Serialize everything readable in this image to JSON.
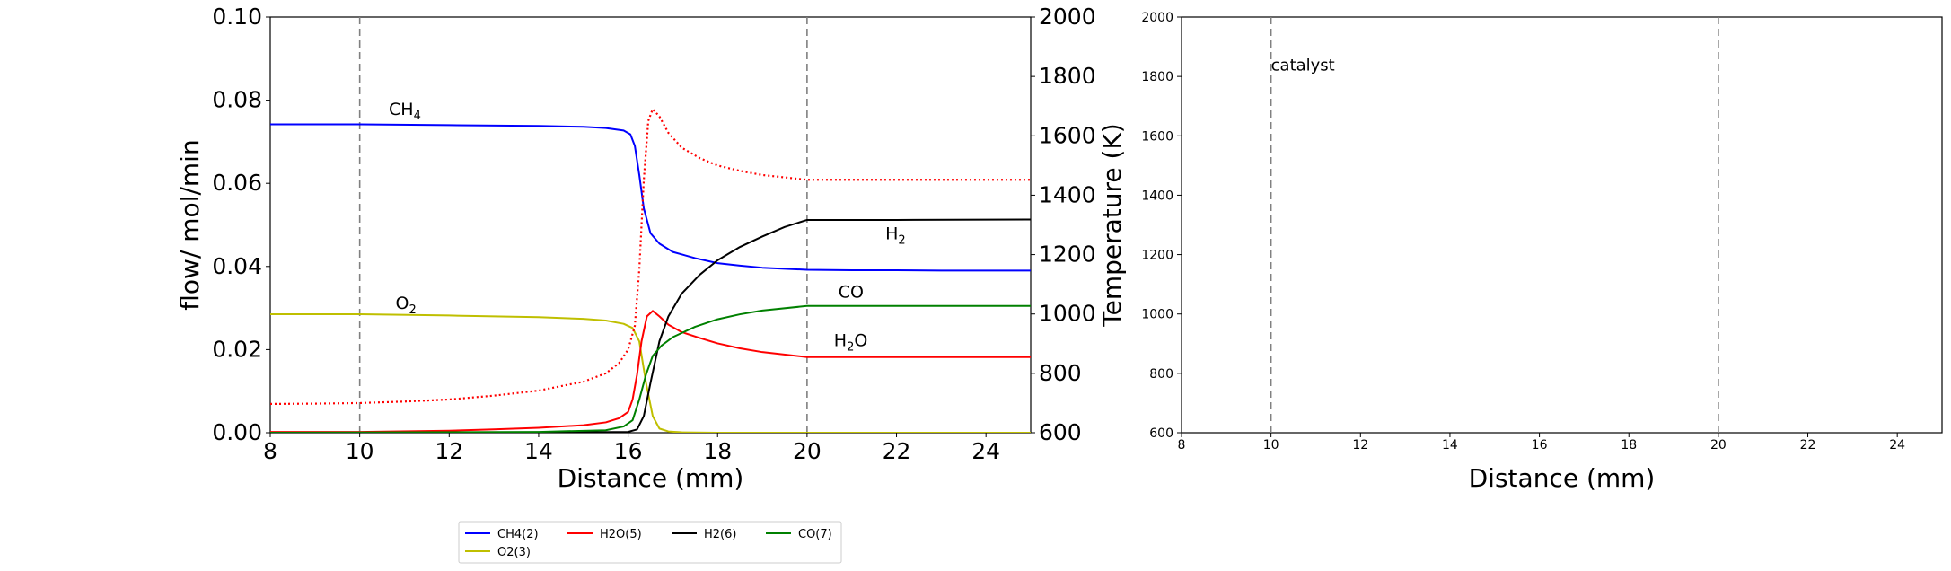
{
  "chart_data": [
    {
      "type": "line",
      "xlabel": "Distance (mm)",
      "ylabel": "flow/ mol/min",
      "ylabel_right": "Temperature (K)",
      "xlim": [
        8,
        25
      ],
      "ylim": [
        0,
        0.1
      ],
      "ylim_right": [
        600,
        2000
      ],
      "x_ticks": [
        "8",
        "10",
        "12",
        "14",
        "16",
        "18",
        "20",
        "22",
        "24"
      ],
      "y_ticks": [
        "0.00",
        "0.02",
        "0.04",
        "0.06",
        "0.08",
        "0.10"
      ],
      "y_ticks_right": [
        "600",
        "800",
        "1000",
        "1200",
        "1400",
        "1600",
        "1800",
        "2000"
      ],
      "grid": false,
      "vlines": [
        10,
        20
      ],
      "series": [
        {
          "name": "CH4(2)",
          "color": "#0000ff",
          "style": "solid",
          "x": [
            8,
            10,
            12,
            14,
            15,
            15.5,
            15.9,
            16.05,
            16.15,
            16.25,
            16.35,
            16.5,
            16.7,
            17,
            17.5,
            18,
            18.5,
            19,
            20,
            21,
            22,
            23,
            25
          ],
          "y": [
            0.0742,
            0.0742,
            0.074,
            0.0738,
            0.0736,
            0.0733,
            0.0727,
            0.0718,
            0.069,
            0.062,
            0.054,
            0.048,
            0.0455,
            0.0435,
            0.042,
            0.0408,
            0.0402,
            0.0397,
            0.0392,
            0.0391,
            0.0391,
            0.039,
            0.039
          ]
        },
        {
          "name": "O2(3)",
          "color": "#bfbf00",
          "style": "solid",
          "x": [
            8,
            10,
            12,
            14,
            15,
            15.5,
            15.9,
            16.1,
            16.25,
            16.4,
            16.55,
            16.7,
            16.9,
            17.2,
            18,
            20,
            25
          ],
          "y": [
            0.0285,
            0.0285,
            0.0282,
            0.0278,
            0.0274,
            0.027,
            0.0262,
            0.0252,
            0.022,
            0.012,
            0.004,
            0.001,
            0.0003,
            0.0001,
            0,
            0,
            0
          ]
        },
        {
          "name": "H2O(5)",
          "color": "#ff0000",
          "style": "solid",
          "x": [
            8,
            10,
            12,
            13,
            14,
            15,
            15.5,
            15.8,
            16.0,
            16.1,
            16.2,
            16.3,
            16.42,
            16.55,
            16.7,
            16.9,
            17.2,
            17.6,
            18,
            18.5,
            19,
            20,
            22,
            25
          ],
          "y": [
            0.0002,
            0.0002,
            0.0005,
            0.0008,
            0.0012,
            0.0018,
            0.0025,
            0.0035,
            0.005,
            0.008,
            0.014,
            0.022,
            0.028,
            0.0293,
            0.028,
            0.026,
            0.0242,
            0.0228,
            0.0215,
            0.0203,
            0.0194,
            0.0182,
            0.0182,
            0.0182
          ]
        },
        {
          "name": "H2(6)",
          "color": "#000000",
          "style": "solid",
          "x": [
            8,
            14,
            16,
            16.2,
            16.35,
            16.5,
            16.7,
            16.9,
            17.2,
            17.6,
            18,
            18.5,
            19,
            19.5,
            20,
            22,
            25
          ],
          "y": [
            0,
            0,
            0.0002,
            0.0008,
            0.004,
            0.012,
            0.022,
            0.028,
            0.0335,
            0.038,
            0.0415,
            0.0447,
            0.0472,
            0.0495,
            0.0512,
            0.0512,
            0.0513
          ]
        },
        {
          "name": "CO(7)",
          "color": "#008000",
          "style": "solid",
          "x": [
            8,
            14,
            15.5,
            15.9,
            16.1,
            16.25,
            16.4,
            16.55,
            16.75,
            17,
            17.5,
            18,
            18.5,
            19,
            20,
            22,
            25
          ],
          "y": [
            0,
            0.0002,
            0.0006,
            0.0015,
            0.003,
            0.008,
            0.014,
            0.0185,
            0.021,
            0.023,
            0.0255,
            0.0273,
            0.0285,
            0.0294,
            0.0305,
            0.0305,
            0.0305
          ]
        },
        {
          "name": "",
          "color": "#ff0000",
          "style": "dotted",
          "axis": "right",
          "x": [
            8,
            9,
            10,
            11,
            12,
            13,
            14,
            15,
            15.5,
            15.8,
            16.0,
            16.15,
            16.25,
            16.35,
            16.45,
            16.55,
            16.7,
            16.9,
            17.2,
            17.6,
            18,
            18.5,
            19,
            19.5,
            20,
            22,
            25
          ],
          "y": [
            697,
            698,
            700,
            705,
            712,
            725,
            742,
            772,
            800,
            835,
            880,
            960,
            1150,
            1450,
            1650,
            1690,
            1665,
            1610,
            1560,
            1525,
            1500,
            1482,
            1468,
            1460,
            1452,
            1452,
            1452
          ]
        }
      ],
      "annotations": [
        {
          "text": "CH",
          "sub": "4",
          "color": "#0000ff",
          "x": 10.65,
          "y": 0.0765
        },
        {
          "text": "O",
          "sub": "2",
          "color": "#bfbf00",
          "x": 10.8,
          "y": 0.0298
        },
        {
          "text": "H",
          "sub": "2",
          "color": "#000000",
          "x": 21.75,
          "y": 0.0465
        },
        {
          "text": "CO",
          "sub": "",
          "color": "#008000",
          "x": 20.7,
          "y": 0.0325
        },
        {
          "text": "H",
          "sub": "2",
          "suffix": "O",
          "color": "#ff0000",
          "x": 20.6,
          "y": 0.0208
        }
      ],
      "legend": {
        "position": "bottom",
        "entries": [
          {
            "label": "CH4(2)",
            "color": "#0000ff"
          },
          {
            "label": "H2O(5)",
            "color": "#ff0000"
          },
          {
            "label": "H2(6)",
            "color": "#000000"
          },
          {
            "label": "CO(7)",
            "color": "#008000"
          },
          {
            "label": "O2(3)",
            "color": "#bfbf00"
          }
        ]
      }
    },
    {
      "type": "line",
      "xlabel": "Distance (mm)",
      "xlim": [
        8,
        25
      ],
      "ylim": [
        600,
        2000
      ],
      "x_ticks": [
        "8",
        "10",
        "12",
        "14",
        "16",
        "18",
        "20",
        "22",
        "24"
      ],
      "y_ticks": [
        "600",
        "800",
        "1000",
        "1200",
        "1400",
        "1600",
        "1800",
        "2000"
      ],
      "grid": false,
      "vlines": [
        10,
        20
      ],
      "series": [],
      "annotations": [
        {
          "text": "catalyst",
          "x": 10.0,
          "y": 1820
        }
      ]
    }
  ]
}
